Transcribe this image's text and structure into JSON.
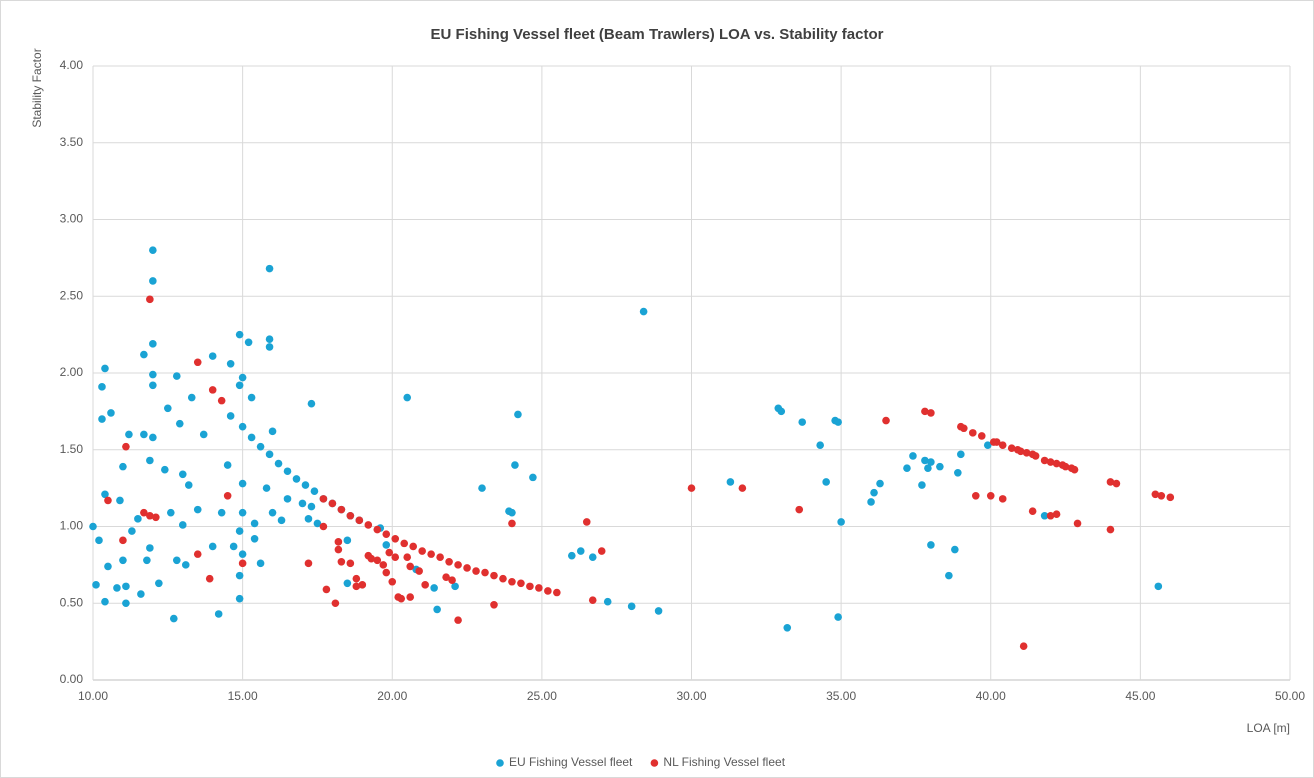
{
  "chart_data": {
    "type": "scatter",
    "title": "EU Fishing Vessel fleet (Beam Trawlers) LOA vs. Stability factor",
    "x_label": "LOA [m]",
    "y_label": "Stability Factor",
    "xlim": [
      10,
      50
    ],
    "ylim": [
      0,
      4
    ],
    "xticks": [
      {
        "value": 10,
        "label": "10.00"
      },
      {
        "value": 15,
        "label": "15.00"
      },
      {
        "value": 20,
        "label": "20.00"
      },
      {
        "value": 25,
        "label": "25.00"
      },
      {
        "value": 30,
        "label": "30.00"
      },
      {
        "value": 35,
        "label": "35.00"
      },
      {
        "value": 40,
        "label": "40.00"
      },
      {
        "value": 45,
        "label": "45.00"
      },
      {
        "value": 50,
        "label": "50.00"
      }
    ],
    "yticks": [
      {
        "value": 0,
        "label": "0.00"
      },
      {
        "value": 0.5,
        "label": "0.50"
      },
      {
        "value": 1,
        "label": "1.00"
      },
      {
        "value": 1.5,
        "label": "1.50"
      },
      {
        "value": 2,
        "label": "2.00"
      },
      {
        "value": 2.5,
        "label": "2.50"
      },
      {
        "value": 3,
        "label": "3.00"
      },
      {
        "value": 3.5,
        "label": "3.50"
      },
      {
        "value": 4,
        "label": "4.00"
      }
    ],
    "grid": true,
    "legend": "bottom",
    "series": [
      {
        "name": "EU Fishing Vessel fleet",
        "color": "#1aa3d4",
        "x": [
          15.0,
          15.3,
          15.6,
          15.9,
          16.2,
          16.5,
          16.8,
          17.1,
          17.4,
          17.7,
          18.0,
          18.3,
          18.6,
          18.9,
          10.0,
          10.1,
          10.2,
          10.3,
          10.3,
          10.4,
          10.4,
          10.4,
          10.5,
          10.6,
          10.8,
          10.9,
          11.0,
          11.0,
          11.1,
          11.2,
          11.1,
          11.3,
          11.5,
          11.6,
          11.7,
          11.7,
          11.8,
          11.9,
          11.9,
          12.0,
          12.0,
          12.0,
          12.0,
          12.0,
          12.0,
          12.2,
          12.4,
          12.5,
          12.6,
          12.7,
          12.8,
          12.8,
          12.9,
          13.0,
          13.0,
          13.1,
          13.2,
          13.3,
          13.5,
          13.7,
          14.0,
          14.0,
          14.2,
          14.3,
          14.5,
          14.6,
          14.6,
          14.7,
          14.9,
          14.9,
          14.9,
          14.9,
          15.0,
          15.0,
          15.0,
          14.9,
          15.0,
          15.2,
          15.3,
          15.4,
          15.4,
          15.6,
          15.9,
          15.9,
          15.9,
          16.0,
          16.0,
          15.8,
          16.3,
          16.5,
          17.0,
          17.2,
          17.3,
          17.3,
          17.5,
          18.5,
          18.5,
          19.6,
          19.8,
          20.5,
          20.8,
          21.4,
          21.5,
          22.1,
          23.0,
          23.9,
          24.0,
          24.1,
          24.2,
          24.7,
          26.0,
          26.3,
          26.7,
          27.2,
          28.0,
          28.4,
          28.9,
          31.3,
          32.9,
          33.0,
          33.2,
          33.7,
          34.3,
          34.5,
          34.8,
          34.9,
          34.9,
          35.0,
          36.0,
          36.1,
          36.3,
          37.2,
          37.4,
          37.7,
          37.8,
          38.0,
          38.0,
          37.9,
          38.3,
          38.6,
          38.8,
          38.9,
          39.0,
          39.9,
          41.8,
          45.6
        ],
        "values": [
          1.65,
          1.58,
          1.52,
          1.47,
          1.41,
          1.36,
          1.31,
          1.27,
          1.23,
          1.18,
          1.15,
          1.11,
          1.07,
          1.04,
          1.0,
          0.62,
          0.91,
          1.91,
          1.7,
          2.03,
          1.21,
          0.51,
          0.74,
          1.74,
          0.6,
          1.17,
          0.78,
          1.39,
          0.5,
          1.6,
          0.61,
          0.97,
          1.05,
          0.56,
          1.6,
          2.12,
          0.78,
          0.86,
          1.43,
          2.8,
          2.6,
          2.19,
          1.99,
          1.92,
          1.58,
          0.63,
          1.37,
          1.77,
          1.09,
          0.4,
          1.98,
          0.78,
          1.67,
          1.34,
          1.01,
          0.75,
          1.27,
          1.84,
          1.11,
          1.6,
          2.11,
          0.87,
          0.43,
          1.09,
          1.4,
          2.06,
          1.72,
          0.87,
          2.25,
          0.53,
          0.68,
          1.92,
          1.97,
          1.28,
          1.09,
          0.97,
          0.82,
          2.2,
          1.84,
          0.92,
          1.02,
          0.76,
          2.68,
          2.22,
          2.17,
          1.62,
          1.09,
          1.25,
          1.04,
          1.18,
          1.15,
          1.05,
          1.8,
          1.13,
          1.02,
          0.63,
          0.91,
          0.99,
          0.88,
          1.84,
          0.72,
          0.6,
          0.46,
          0.61,
          1.25,
          1.1,
          1.09,
          1.4,
          1.73,
          1.32,
          0.81,
          0.84,
          0.8,
          0.51,
          0.48,
          2.4,
          0.45,
          1.29,
          1.77,
          1.75,
          0.34,
          1.68,
          1.53,
          1.29,
          1.69,
          1.68,
          0.41,
          1.03,
          1.16,
          1.22,
          1.28,
          1.38,
          1.46,
          1.27,
          1.43,
          1.42,
          0.88,
          1.38,
          1.39,
          0.68,
          0.85,
          1.35,
          1.47,
          1.53,
          1.07,
          0.61
        ]
      },
      {
        "name": "NL Fishing Vessel fleet",
        "color": "#e0302f",
        "x": [
          17.7,
          18.0,
          18.3,
          18.6,
          18.9,
          19.2,
          19.5,
          19.8,
          20.1,
          20.4,
          20.7,
          21.0,
          21.3,
          21.6,
          21.9,
          22.2,
          22.5,
          22.8,
          23.1,
          23.4,
          23.7,
          24.0,
          24.3,
          24.6,
          24.9,
          25.2,
          25.5,
          37.8,
          38.0,
          39.0,
          39.1,
          39.4,
          39.7,
          40.1,
          40.2,
          40.4,
          40.7,
          40.9,
          41.0,
          41.2,
          41.4,
          41.5,
          41.8,
          42.0,
          42.2,
          42.4,
          42.5,
          42.7,
          42.8,
          11.9,
          11.9,
          12.1,
          11.7,
          11.1,
          11.0,
          10.5,
          13.5,
          14.0,
          14.3,
          14.5,
          13.9,
          13.5,
          15.0,
          17.2,
          17.7,
          17.8,
          18.1,
          18.2,
          18.2,
          18.3,
          18.6,
          18.8,
          18.8,
          19.0,
          19.2,
          19.3,
          19.5,
          19.7,
          19.8,
          19.9,
          20.0,
          20.1,
          20.2,
          20.3,
          20.5,
          20.6,
          20.6,
          20.9,
          21.1,
          21.8,
          22.0,
          22.2,
          23.4,
          24.0,
          26.5,
          26.7,
          27.0,
          30.0,
          31.7,
          33.6,
          36.5,
          39.5,
          40.0,
          40.4,
          41.1,
          41.4,
          42.0,
          42.2,
          42.9,
          44.0,
          44.2,
          44.0,
          45.5,
          45.7,
          46.0
        ],
        "values": [
          1.18,
          1.15,
          1.11,
          1.07,
          1.04,
          1.01,
          0.98,
          0.95,
          0.92,
          0.89,
          0.87,
          0.84,
          0.82,
          0.8,
          0.77,
          0.75,
          0.73,
          0.71,
          0.7,
          0.68,
          0.66,
          0.64,
          0.63,
          0.61,
          0.6,
          0.58,
          0.57,
          1.75,
          1.74,
          1.65,
          1.64,
          1.61,
          1.59,
          1.55,
          1.55,
          1.53,
          1.51,
          1.5,
          1.49,
          1.48,
          1.47,
          1.46,
          1.43,
          1.42,
          1.41,
          1.4,
          1.39,
          1.38,
          1.37,
          2.48,
          1.07,
          1.06,
          1.09,
          1.52,
          0.91,
          1.17,
          2.07,
          1.89,
          1.82,
          1.2,
          0.66,
          0.82,
          0.76,
          0.76,
          1.0,
          0.59,
          0.5,
          0.9,
          0.85,
          0.77,
          0.76,
          0.61,
          0.66,
          0.62,
          0.81,
          0.79,
          0.78,
          0.75,
          0.7,
          0.83,
          0.64,
          0.8,
          0.54,
          0.53,
          0.8,
          0.74,
          0.54,
          0.71,
          0.62,
          0.67,
          0.65,
          0.39,
          0.49,
          1.02,
          1.03,
          0.52,
          0.84,
          1.25,
          1.25,
          1.11,
          1.69,
          1.2,
          1.2,
          1.18,
          0.22,
          1.1,
          1.07,
          1.08,
          1.02,
          1.29,
          1.28,
          0.98,
          1.21,
          1.2,
          1.19
        ]
      }
    ]
  }
}
